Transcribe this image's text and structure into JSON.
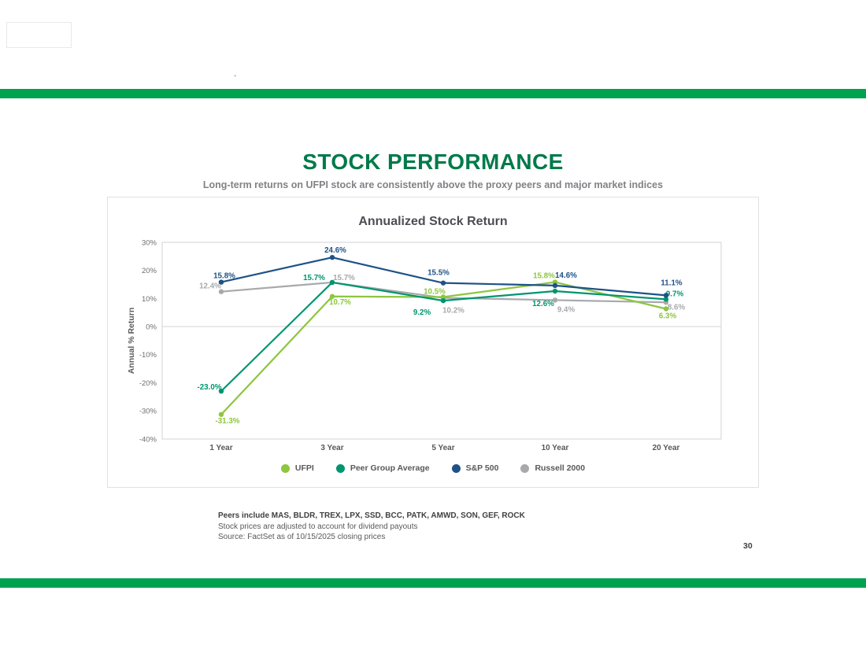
{
  "slide": {
    "title": "STOCK PERFORMANCE",
    "subtitle": "Long-term returns on UFPI stock are consistently above the proxy peers and major market indices",
    "page_number": "30",
    "top_left_dot": "."
  },
  "footnotes": {
    "line1": "Peers include MAS, BLDR, TREX, LPX, SSD, BCC, PATK, AMWD, SON, GEF, ROCK",
    "line2": "Stock prices are adjusted to account for dividend payouts",
    "line3": "Source: FactSet as of 10/15/2025 closing prices"
  },
  "colors": {
    "brand_green": "#00A24E",
    "title_green": "#007A49",
    "ufpi": "#8DC63F",
    "peer_group": "#00956F",
    "sp500": "#1E5288",
    "russell_2000": "#A7A9AC",
    "axis_line": "#D1D3D4",
    "tick_text": "#6D6E71",
    "axis_text": "#58595B"
  },
  "chart_data": {
    "type": "line",
    "title": "Annualized Stock Return",
    "ylabel": "Annual % Return",
    "xlabel": "",
    "categories": [
      "1 Year",
      "3 Year",
      "5 Year",
      "10 Year",
      "20 Year"
    ],
    "y_ticks": [
      "30%",
      "20%",
      "10%",
      "0%",
      "-10%",
      "-20%",
      "-30%",
      "-40%"
    ],
    "ylim": [
      -40,
      30
    ],
    "grid": false,
    "zero_line": true,
    "legend_position": "bottom",
    "series": [
      {
        "name": "UFPI",
        "color": "#8DC63F",
        "values": [
          -31.3,
          10.7,
          10.5,
          15.8,
          6.3
        ],
        "labels": [
          "-31.3%",
          "10.7%",
          "10.5%",
          "15.8%",
          "6.3%"
        ]
      },
      {
        "name": "Peer Group Average",
        "color": "#00956F",
        "values": [
          -23.0,
          15.7,
          9.2,
          12.6,
          9.7
        ],
        "labels": [
          "-23.0%",
          "15.7%",
          "9.2%",
          "12.6%",
          "9.7%"
        ]
      },
      {
        "name": "S&P 500",
        "color": "#1E5288",
        "values": [
          15.8,
          24.6,
          15.5,
          14.6,
          11.1
        ],
        "labels": [
          "15.8%",
          "24.6%",
          "15.5%",
          "14.6%",
          "11.1%"
        ]
      },
      {
        "name": "Russell 2000",
        "color": "#A7A9AC",
        "values": [
          12.4,
          15.7,
          10.2,
          9.4,
          8.6
        ],
        "labels": [
          "12.4%",
          "15.7%",
          "10.2%",
          "9.4%",
          "8.6%"
        ]
      }
    ]
  }
}
